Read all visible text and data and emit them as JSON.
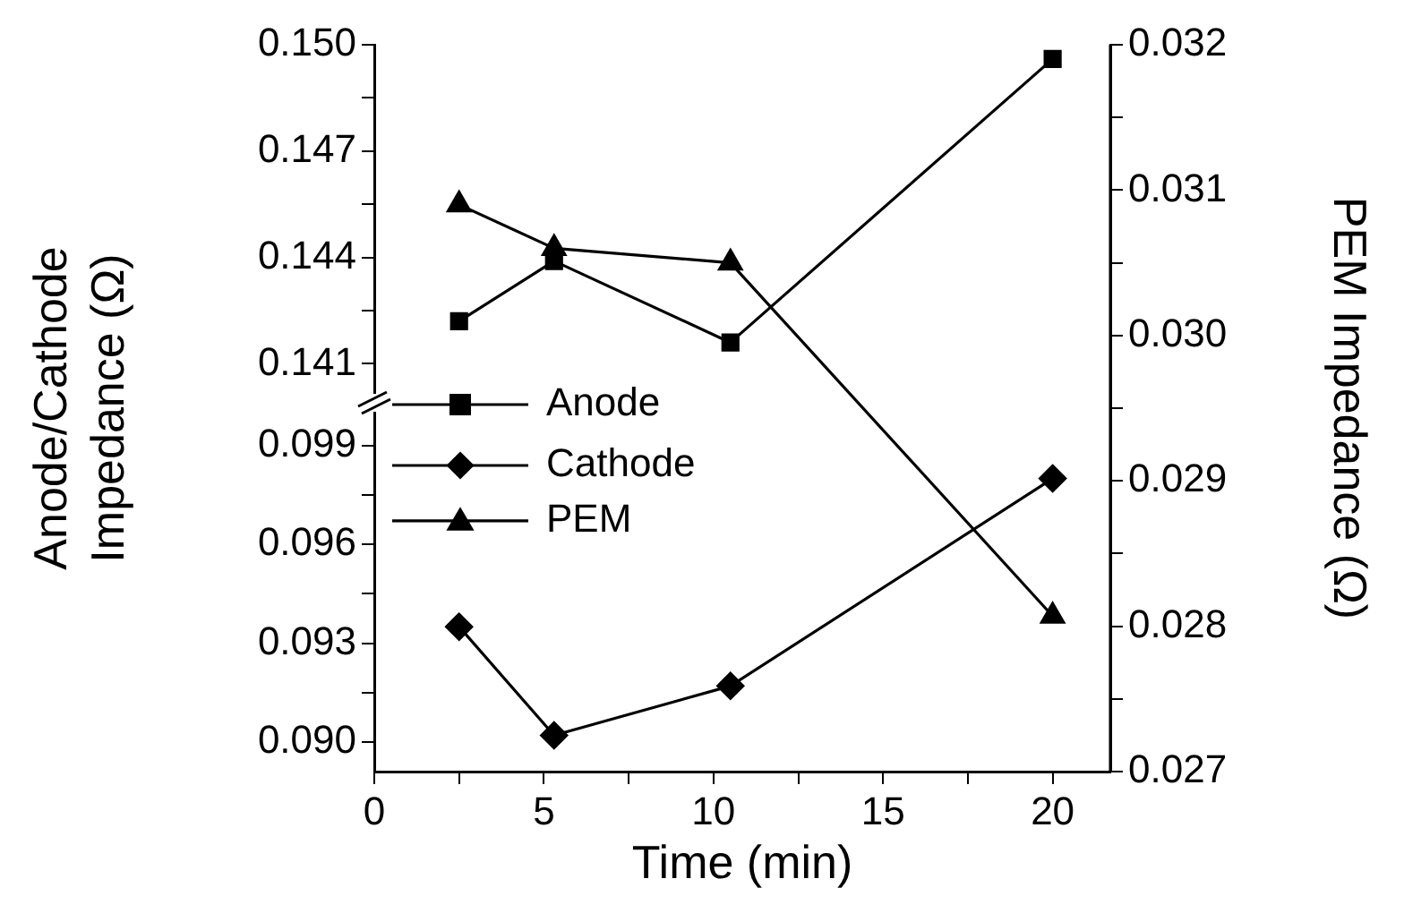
{
  "chart_data": [
    {
      "type": "line",
      "ylabel": "Anode/Cathode Impedance (Ω)",
      "tick_labels": "y",
      "legend": "bottom left",
      "line_style": "solid",
      "grid": false,
      "x": [
        2.5,
        5.3,
        10.5,
        20
      ],
      "xlim": [
        0,
        21.7
      ],
      "ylim": [
        0.1399,
        0.15
      ],
      "yticks": [
        0.141,
        {
          "value": 0.1425,
          "label": null
        },
        0.144,
        {
          "value": 0.1455,
          "label": null
        },
        0.147,
        {
          "value": 0.1485,
          "label": null
        },
        {
          "value": 0.15,
          "label": "0.150"
        }
      ],
      "series": [
        {
          "name": "Anode",
          "color": "#000000",
          "marker": "square",
          "values": [
            0.1422,
            0.1439,
            0.1416,
            0.1496
          ]
        }
      ]
    },
    {
      "type": "line",
      "xlabel": "Time (min)",
      "legend": "top left",
      "line_style": "solid",
      "grid": false,
      "x": [
        2.5,
        5.3,
        10.5,
        20
      ],
      "xlim": [
        0,
        21.7
      ],
      "xticks": [
        0,
        {
          "value": 2.5,
          "label": null
        },
        5,
        {
          "value": 7.5,
          "label": null
        },
        10,
        {
          "value": 12.5,
          "label": null
        },
        15,
        {
          "value": 17.5,
          "label": null
        },
        20
      ],
      "ylim": [
        0.0891,
        0.1003
      ],
      "yticks": [
        {
          "value": 0.09,
          "label": "0.090"
        },
        {
          "value": 0.0915,
          "label": null
        },
        0.093,
        {
          "value": 0.0945,
          "label": null
        },
        0.096,
        {
          "value": 0.0975,
          "label": null
        },
        0.099
      ],
      "series": [
        {
          "name": "Cathode",
          "color": "#000000",
          "marker": "diamond",
          "values": [
            0.0935,
            0.0902,
            0.0917,
            0.098
          ]
        }
      ]
    },
    {
      "type": "line",
      "y2label": "PEM Impedance (Ω)",
      "tick_labels": "y",
      "legend": "center left",
      "line_style": "solid",
      "grid": false,
      "x": [
        2.5,
        5.3,
        10.5,
        20
      ],
      "xlim": [
        0,
        21.7
      ],
      "y2lim": [
        0.027,
        0.032
      ],
      "y2ticks": [
        0.027,
        {
          "value": 0.0275,
          "label": null
        },
        0.028,
        {
          "value": 0.0285,
          "label": null
        },
        0.029,
        {
          "value": 0.0295,
          "label": null
        },
        {
          "value": 0.03,
          "label": "0.030"
        },
        {
          "value": 0.0305,
          "label": null
        },
        0.031,
        {
          "value": 0.0315,
          "label": null
        },
        0.032
      ],
      "series": [
        {
          "name": "PEM",
          "color": "#000000",
          "marker": "triangle",
          "axis": "y2",
          "values": [
            0.0309,
            0.0306,
            0.0305,
            0.02807
          ]
        }
      ]
    }
  ]
}
